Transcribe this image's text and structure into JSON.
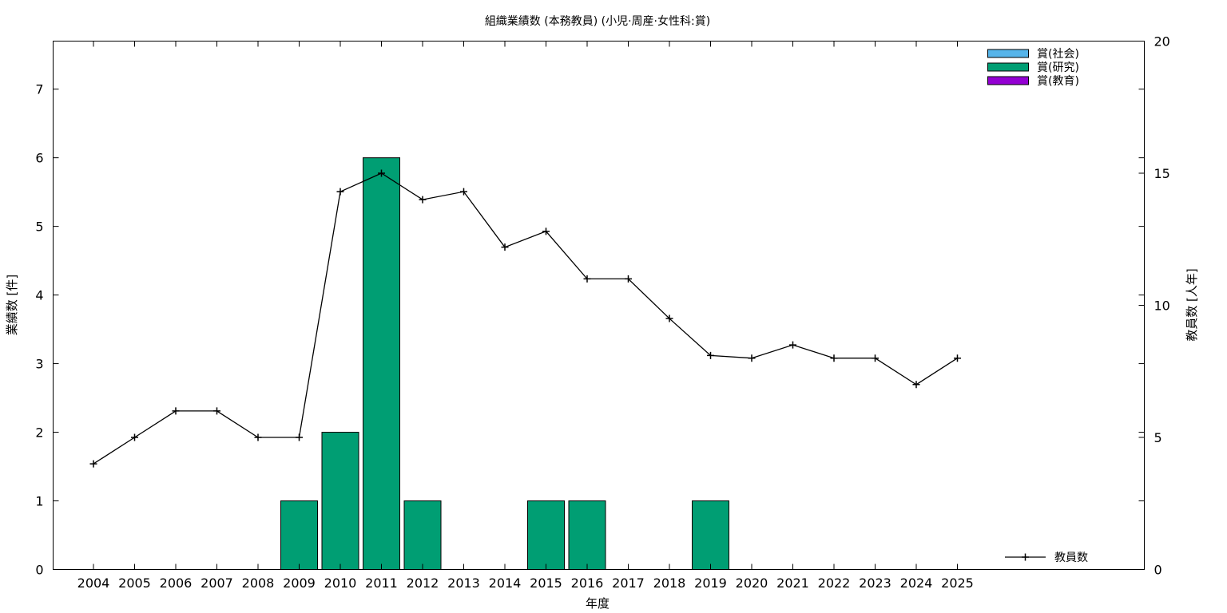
{
  "chart_data": {
    "type": "bar",
    "title": "組織業績数 (本務教員) (小児·周産·女性科:賞)",
    "xlabel": "年度",
    "ylabel": "業績数 [件]",
    "y2label": "教員数 [人年]",
    "categories": [
      "2004",
      "2005",
      "2006",
      "2007",
      "2008",
      "2009",
      "2010",
      "2011",
      "2012",
      "2013",
      "2014",
      "2015",
      "2016",
      "2017",
      "2018",
      "2019",
      "2020",
      "2021",
      "2022",
      "2023",
      "2024",
      "2025"
    ],
    "ylim": [
      0,
      7.7
    ],
    "yticks": [
      0,
      1,
      2,
      3,
      4,
      5,
      6,
      7
    ],
    "y2lim": [
      0,
      20
    ],
    "y2ticks": [
      0,
      5,
      10,
      15,
      20
    ],
    "grid": false,
    "legend_position": "top-right",
    "bar_series": [
      {
        "name": "賞(社会)",
        "color": "#56b4e9",
        "values": [
          0,
          0,
          0,
          0,
          0,
          0,
          0,
          0,
          0,
          0,
          0,
          0,
          0,
          0,
          0,
          0,
          0,
          0,
          0,
          0,
          0,
          0
        ]
      },
      {
        "name": "賞(研究)",
        "color": "#009e73",
        "values": [
          0,
          0,
          0,
          0,
          0,
          1,
          2,
          6,
          1,
          0,
          0,
          1,
          1,
          0,
          0,
          1,
          0,
          0,
          0,
          0,
          0,
          0
        ]
      },
      {
        "name": "賞(教育)",
        "color": "#9400d3",
        "values": [
          0,
          0,
          0,
          0,
          0,
          0,
          0,
          0,
          0,
          0,
          0,
          0,
          0,
          0,
          0,
          0,
          0,
          0,
          0,
          0,
          0,
          0
        ]
      }
    ],
    "line_series": [
      {
        "name": "教員数",
        "color": "#000000",
        "axis": "y2",
        "values": [
          4,
          5,
          6,
          6,
          5,
          5,
          14.3,
          15,
          14,
          14.3,
          12.2,
          12.8,
          11,
          11,
          9.5,
          8.1,
          8,
          8.5,
          8,
          8,
          7,
          8
        ]
      }
    ]
  }
}
